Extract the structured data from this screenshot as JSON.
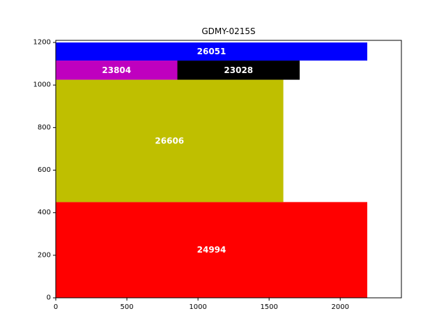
{
  "chart_data": {
    "type": "bar",
    "subtype": "rectangle-packing",
    "title": "GDMY-0215S",
    "xlabel": "",
    "ylabel": "",
    "xlim": [
      0,
      2430
    ],
    "ylim": [
      0,
      1210
    ],
    "xticks": [
      0,
      500,
      1000,
      1500,
      2000
    ],
    "yticks": [
      0,
      200,
      400,
      600,
      800,
      1000,
      1200
    ],
    "grid": false,
    "rects": [
      {
        "label": "24994",
        "x0": 0,
        "x1": 2190,
        "y0": 0,
        "y1": 450,
        "color": "#ff0000"
      },
      {
        "label": "26606",
        "x0": 0,
        "x1": 1600,
        "y0": 450,
        "y1": 1025,
        "color": "#bfbf00"
      },
      {
        "label": "23804",
        "x0": 0,
        "x1": 855,
        "y0": 1025,
        "y1": 1115,
        "color": "#bf00bf"
      },
      {
        "label": "23028",
        "x0": 855,
        "x1": 1715,
        "y0": 1025,
        "y1": 1115,
        "color": "#000000"
      },
      {
        "label": "26051",
        "x0": 0,
        "x1": 2190,
        "y0": 1115,
        "y1": 1200,
        "color": "#0000ff"
      }
    ]
  }
}
